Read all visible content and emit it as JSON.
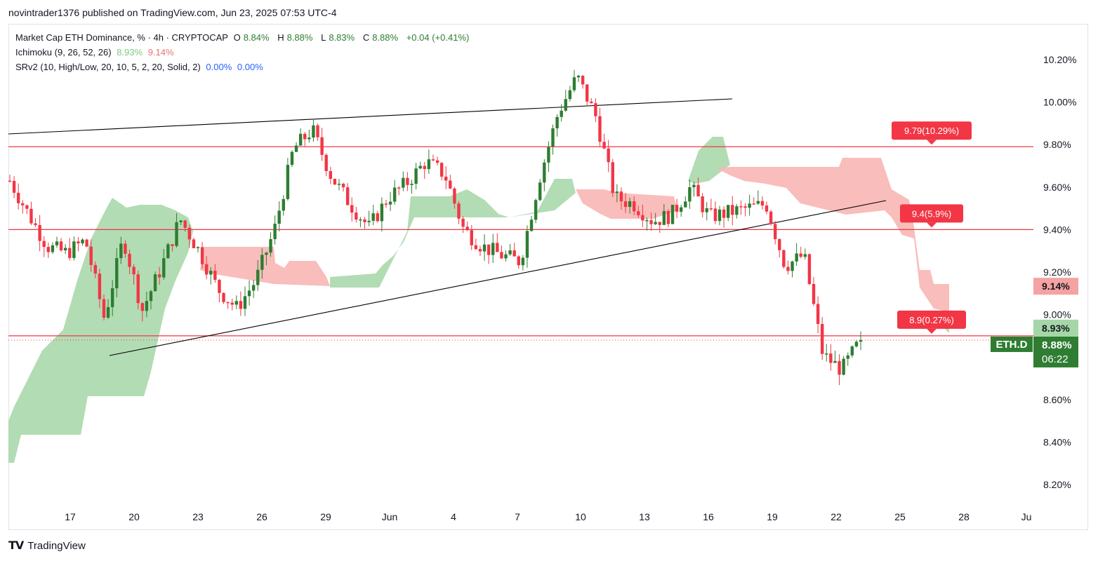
{
  "header": {
    "publish_line": "novintrader1376 published on TradingView.com, Jun 23, 2025 07:53 UTC-4"
  },
  "legend": {
    "symbol_line": "Market Cap ETH Dominance, % · 4h · CRYPTOCAP",
    "o_label": "O",
    "o_val": "8.84%",
    "h_label": "H",
    "h_val": "8.88%",
    "l_label": "L",
    "l_val": "8.83%",
    "c_label": "C",
    "c_val": "8.88%",
    "change": "+0.04 (+0.41%)",
    "ichimoku_name": "Ichimoku (9, 26, 52, 26)",
    "ichimoku_v1": "8.93%",
    "ichimoku_v2": "9.14%",
    "srv2_name": "SRv2 (10, High/Low, 20, 10, 5, 2, 20, Solid, 2)",
    "srv2_v1": "0.00%",
    "srv2_v2": "0.00%"
  },
  "footer": {
    "brand": "TradingView"
  },
  "colors": {
    "up": "#2e7d32",
    "down": "#f23645",
    "level": "#f23645",
    "cloud_green": "#a5d6a7",
    "cloud_red": "#f8b6b4",
    "trendline": "#000000"
  },
  "chart_data": {
    "type": "candlestick",
    "symbol": "ETH.D",
    "timeframe": "4h",
    "x_ticks": [
      "17",
      "20",
      "23",
      "26",
      "29",
      "Jun",
      "4",
      "7",
      "10",
      "13",
      "16",
      "19",
      "22",
      "25",
      "28",
      "Ju"
    ],
    "y_ticks": [
      "10.20%",
      "10.00%",
      "9.80%",
      "9.60%",
      "9.40%",
      "9.20%",
      "9.00%",
      "8.80%",
      "8.60%",
      "8.40%",
      "8.20%"
    ],
    "y_range": [
      8.1,
      10.4
    ],
    "price_labels": [
      {
        "text": "9.14%",
        "value": 9.14,
        "kind": "ichimoku-b"
      },
      {
        "text": "8.93%",
        "value": 8.93,
        "kind": "ichimoku-a"
      },
      {
        "text": "8.88%",
        "value": 8.88,
        "kind": "last"
      }
    ],
    "last_symbol": "ETH.D",
    "countdown": "06:22",
    "levels": [
      {
        "value": 9.79,
        "label": "9.79(10.29%)"
      },
      {
        "value": 9.4,
        "label": "9.4(5.9%)"
      },
      {
        "value": 8.9,
        "label": "8.9(0.27%)"
      }
    ],
    "trendlines": [
      {
        "from": [
          "15",
          9.85
        ],
        "to": [
          "17 Jun",
          10.02
        ]
      },
      {
        "from": [
          "19",
          8.77
        ],
        "to": [
          "24",
          9.53
        ]
      }
    ],
    "close_path": [
      [
        "15",
        9.63
      ],
      [
        "16",
        9.47
      ],
      [
        "17",
        9.32
      ],
      [
        "18",
        9.29
      ],
      [
        "18.5",
        9.35
      ],
      [
        "19",
        8.98
      ],
      [
        "20",
        9.36
      ],
      [
        "21",
        9.02
      ],
      [
        "22",
        9.22
      ],
      [
        "22.5",
        9.45
      ],
      [
        "23",
        9.3
      ],
      [
        "24",
        9.12
      ],
      [
        "26",
        9.03
      ],
      [
        "27",
        9.16
      ],
      [
        "28",
        9.4
      ],
      [
        "28.5",
        9.78
      ],
      [
        "29",
        9.87
      ],
      [
        "30",
        9.65
      ],
      [
        "31",
        9.52
      ],
      [
        "Jun 1",
        9.41
      ],
      [
        "2",
        9.55
      ],
      [
        "3",
        9.62
      ],
      [
        "4",
        9.72
      ],
      [
        "5",
        9.66
      ],
      [
        "5.5",
        9.4
      ],
      [
        "7",
        9.32
      ],
      [
        "8",
        9.28
      ],
      [
        "9",
        9.25
      ],
      [
        "10",
        9.64
      ],
      [
        "10.5",
        9.95
      ],
      [
        "11",
        10.12
      ],
      [
        "12",
        9.93
      ],
      [
        "12.5",
        9.55
      ],
      [
        "13",
        9.52
      ],
      [
        "14",
        9.44
      ],
      [
        "15",
        9.47
      ],
      [
        "16",
        9.6
      ],
      [
        "17",
        9.46
      ],
      [
        "18",
        9.48
      ],
      [
        "19",
        9.5
      ],
      [
        "20",
        9.52
      ],
      [
        "20.5",
        9.23
      ],
      [
        "21",
        9.28
      ],
      [
        "21.5",
        8.81
      ],
      [
        "22",
        8.74
      ],
      [
        "23",
        8.88
      ]
    ]
  }
}
